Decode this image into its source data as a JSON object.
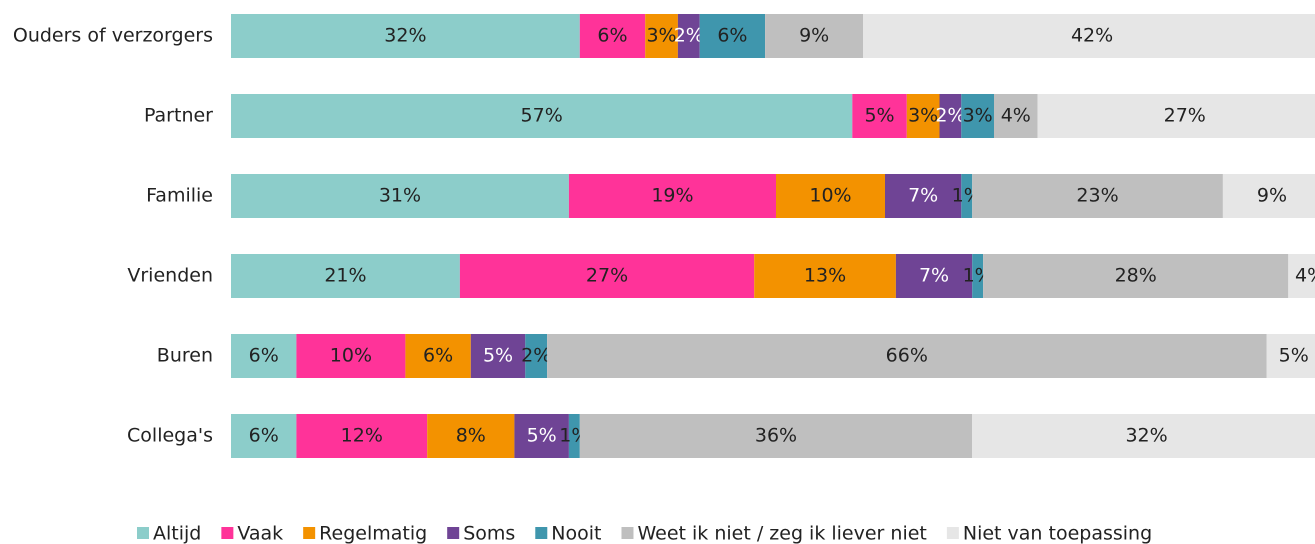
{
  "chart_data": {
    "type": "stacked_bar_horizontal",
    "categories": [
      "Ouders of verzorgers",
      "Partner",
      "Familie",
      "Vrienden",
      "Buren",
      "Collega's"
    ],
    "xlim": [
      0,
      100
    ],
    "legend": "bottom",
    "series": [
      {
        "name": "Altijd",
        "color": "#8ccdca",
        "values": [
          32,
          57,
          31,
          21,
          6,
          6
        ],
        "value_labels": [
          "32%",
          "57%",
          "31%",
          "21%",
          "6%",
          "6%"
        ]
      },
      {
        "name": "Vaak",
        "color": "#ff3399",
        "values": [
          6,
          5,
          19,
          27,
          10,
          12
        ],
        "value_labels": [
          "6%",
          "5%",
          "19%",
          "27%",
          "10%",
          "12%"
        ]
      },
      {
        "name": "Regelmatig",
        "color": "#f39200",
        "values": [
          3,
          3,
          10,
          13,
          6,
          8
        ],
        "value_labels": [
          "3%",
          "3%",
          "10%",
          "13%",
          "6%",
          "8%"
        ]
      },
      {
        "name": "Soms",
        "color": "#6f4495",
        "values": [
          2,
          2,
          7,
          7,
          5,
          5
        ],
        "value_labels": [
          "2%",
          "2%",
          "7%",
          "7%",
          "5%",
          "5%"
        ]
      },
      {
        "name": "Nooit",
        "color": "#3f96ad",
        "values": [
          6,
          3,
          1,
          1,
          2,
          1
        ],
        "value_labels": [
          "6%",
          "3%",
          "1%",
          "1%",
          "2%",
          "1%"
        ]
      },
      {
        "name": "Weet ik niet / zeg ik liever niet",
        "color": "#bfbfbf",
        "values": [
          9,
          4,
          23,
          28,
          66,
          36
        ],
        "value_labels": [
          "9%",
          "4%",
          "23%",
          "28%",
          "66%",
          "36%"
        ]
      },
      {
        "name": "Niet van toepassing",
        "color": "#e6e6e6",
        "values": [
          42,
          27,
          9,
          4,
          5,
          32
        ],
        "value_labels": [
          "42%",
          "27%",
          "9%",
          "4%",
          "5%",
          "32%"
        ]
      }
    ]
  }
}
